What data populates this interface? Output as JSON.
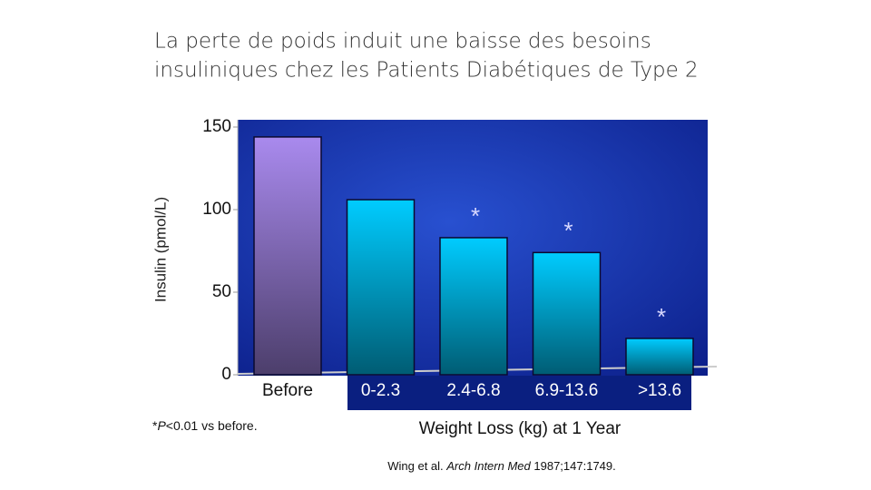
{
  "chart_data": {
    "type": "bar",
    "title": [
      "La perte de poids induit une baisse des besoins",
      "insuliniques chez les Patients Diabétiques de Type 2"
    ],
    "y_label": "Insulin (pmol/L)",
    "x_label": "Weight Loss (kg) at 1 Year",
    "categories": [
      "Before",
      "0-2.3",
      "2.4-6.8",
      "6.9-13.6",
      ">13.6"
    ],
    "values": [
      144,
      106,
      83,
      74,
      22
    ],
    "colors": [
      "#a98aee",
      "#00ccff",
      "#00ccff",
      "#00ccff",
      "#00ccff"
    ],
    "ylim": [
      0,
      150
    ],
    "yticks": [
      0,
      50,
      100,
      150
    ],
    "annotations": [
      {
        "text": "*",
        "category": "2.4-6.8"
      },
      {
        "text": "*",
        "category": "6.9-13.6"
      },
      {
        "text": "*",
        "category": ">13.6"
      }
    ],
    "footnote": [
      "*",
      "P",
      "<0.01 vs before."
    ],
    "citation": [
      "Wing et al. ",
      "Arch Intern Med",
      " 1987;147:1749."
    ]
  }
}
